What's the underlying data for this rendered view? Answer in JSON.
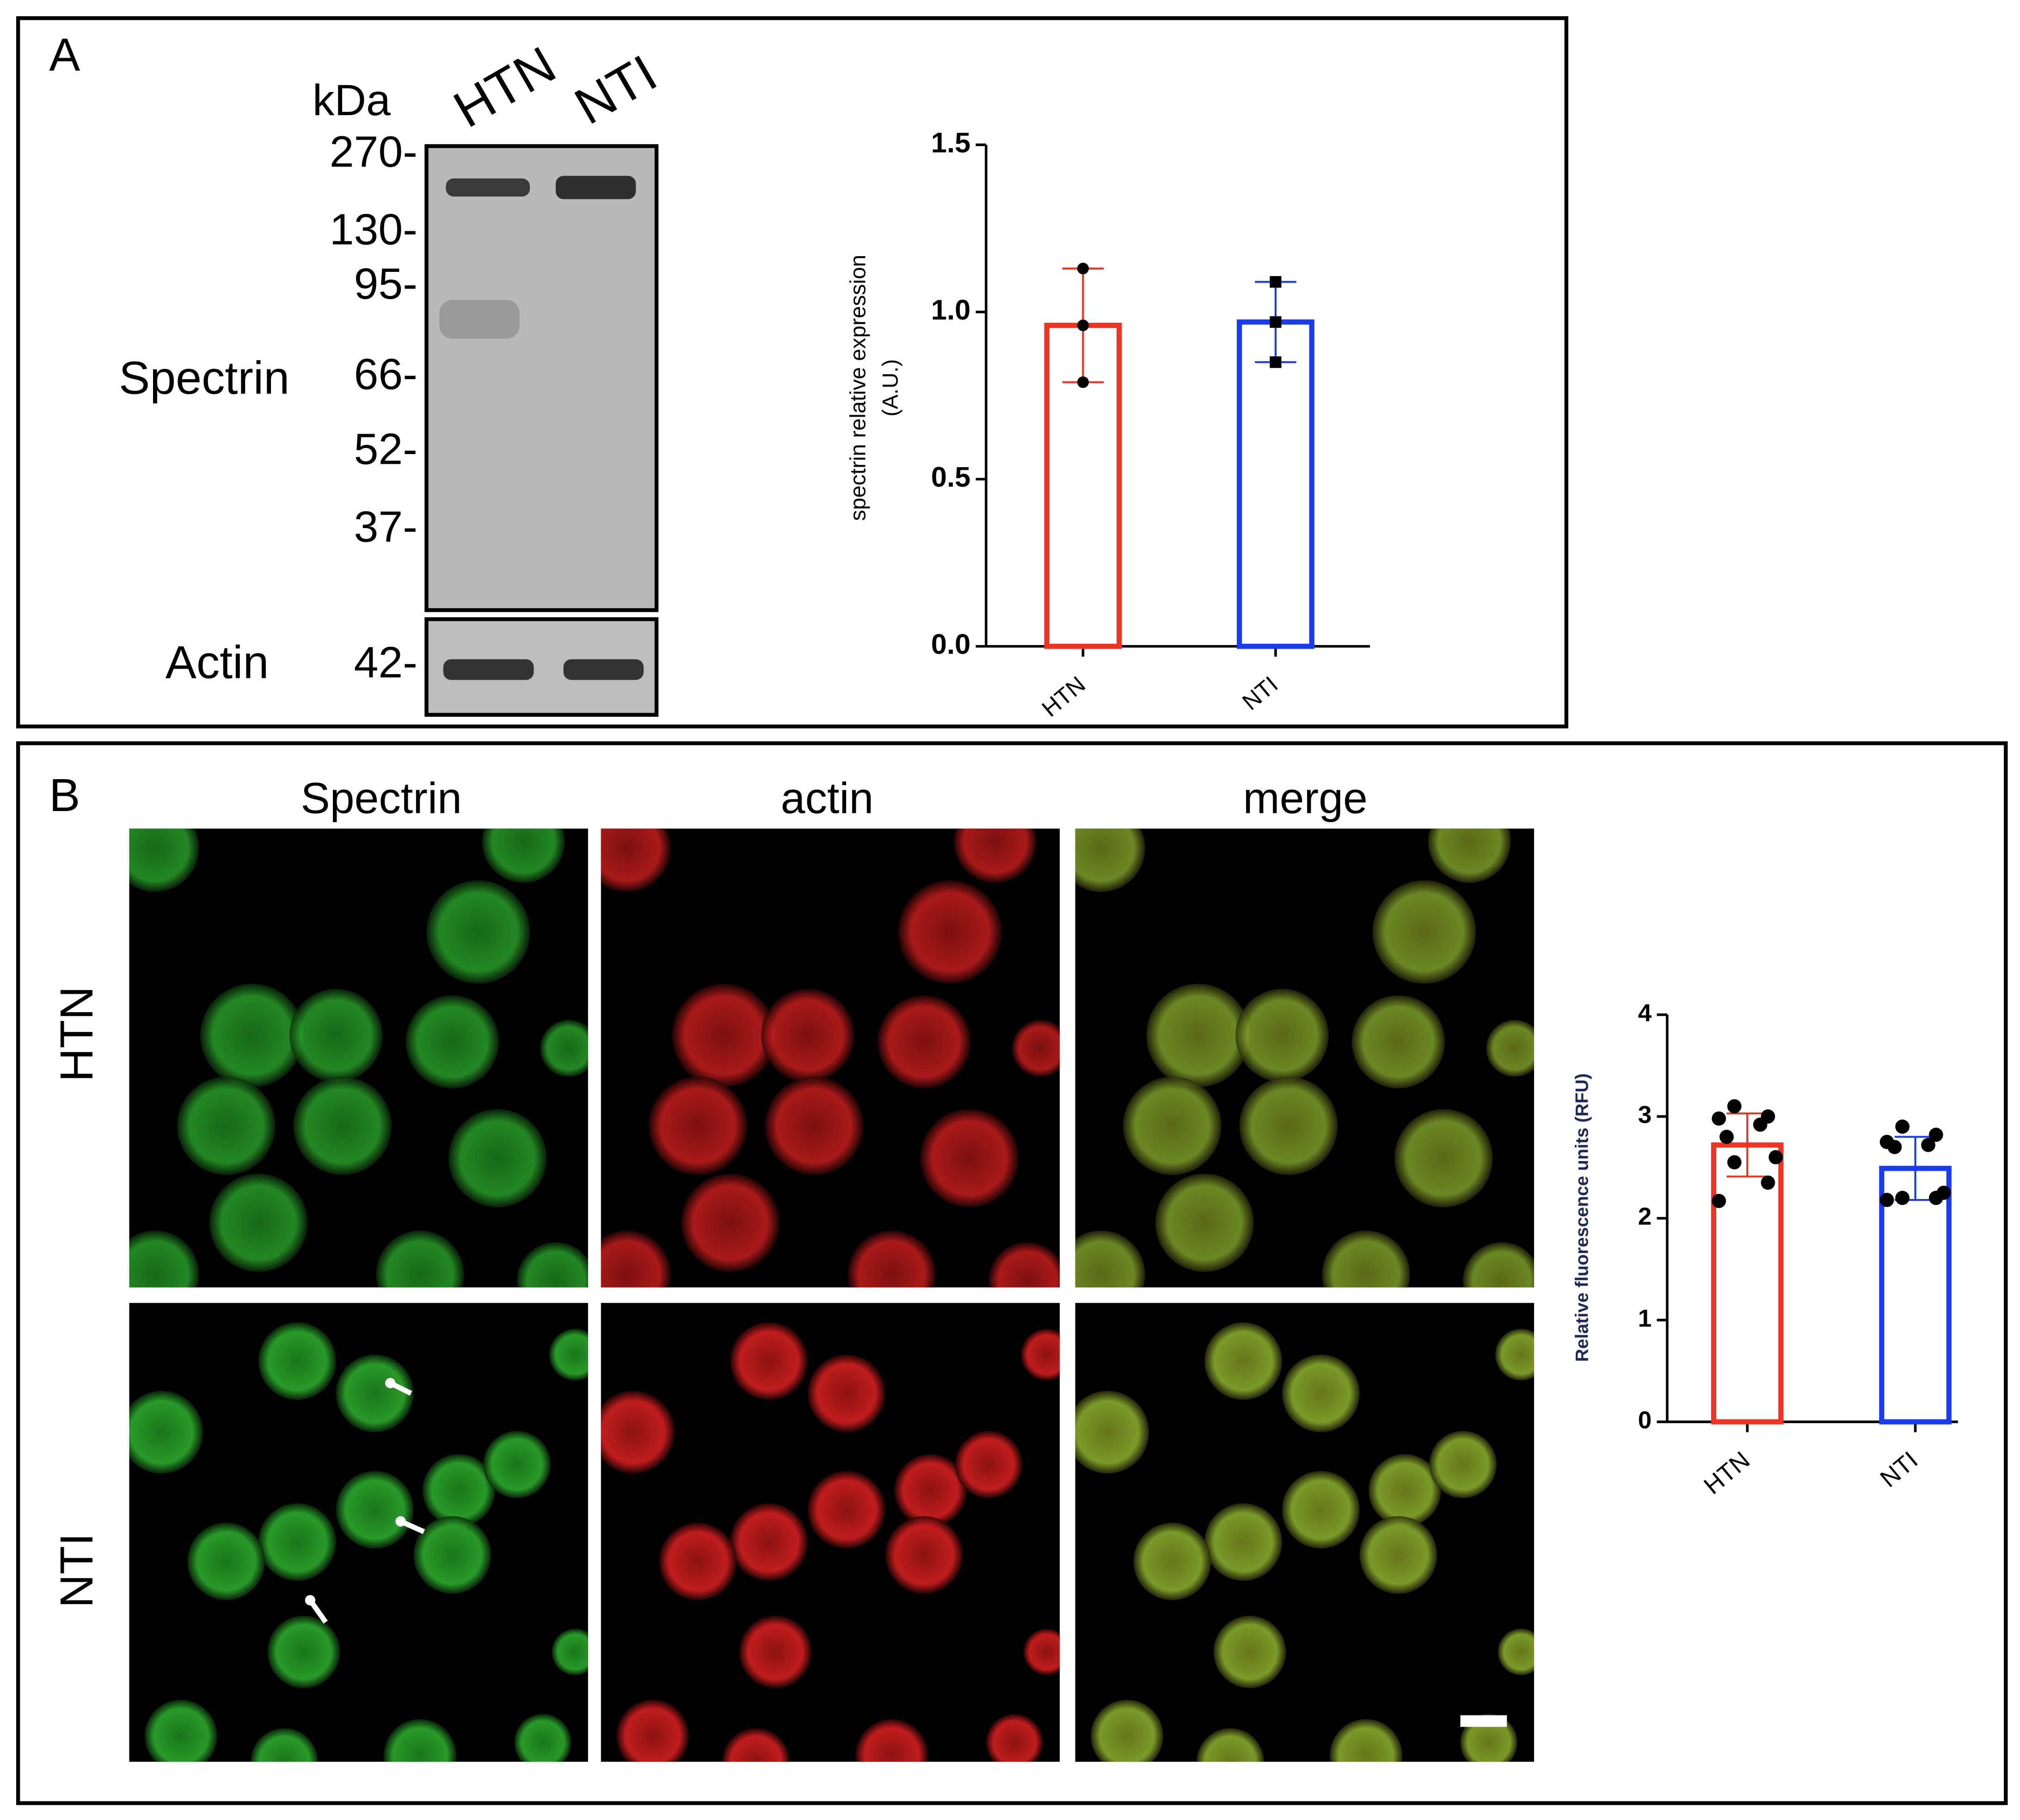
{
  "figure": {
    "panel_a": "A",
    "panel_b": "B",
    "blot": {
      "unit": "kDa",
      "lanes": [
        "HTN",
        "NTI"
      ],
      "markers": [
        "270-",
        "130-",
        "95-",
        "66-",
        "52-",
        "37-"
      ],
      "spectrin_label": "Spectrin",
      "actin_label": "Actin",
      "actin_marker": "42-"
    },
    "microscopy": {
      "columns": [
        "Spectrin",
        "actin",
        "merge"
      ],
      "rows": [
        "HTN",
        "NTI"
      ]
    }
  },
  "chart_data": [
    {
      "type": "bar",
      "ylabel": [
        "spectrin relative expression",
        "(A.U.)"
      ],
      "categories": [
        "HTN",
        "NTI"
      ],
      "values": [
        0.96,
        0.97
      ],
      "errors": [
        0.17,
        0.12
      ],
      "points": [
        [
          1.13,
          0.96,
          0.79
        ],
        [
          1.09,
          0.97,
          0.85
        ]
      ],
      "colors": [
        "#ee3322",
        "#1a3cf0"
      ],
      "markers": [
        "circle",
        "square"
      ],
      "ylim": [
        0,
        1.5
      ],
      "yticks": [
        {
          "value": 0,
          "label": "0.0"
        },
        {
          "value": 0.5,
          "label": "0.5"
        },
        {
          "value": 1,
          "label": "1.0"
        },
        {
          "value": 1.5,
          "label": "1.5"
        }
      ]
    },
    {
      "type": "bar",
      "ylabel": [
        "Relative fluorescence units (RFU)"
      ],
      "categories": [
        "HTN",
        "NTI"
      ],
      "values": [
        2.72,
        2.49
      ],
      "errors": [
        0.31,
        0.31
      ],
      "points": [
        [
          3.1,
          3.0,
          2.98,
          2.92,
          2.8,
          2.6,
          2.55,
          2.35,
          2.17
        ],
        [
          2.9,
          2.82,
          2.75,
          2.72,
          2.7,
          2.25,
          2.2,
          2.2,
          2.18
        ]
      ],
      "colors": [
        "#ee3322",
        "#1a3cf0"
      ],
      "markers": [
        "circle",
        "circle"
      ],
      "ylim": [
        0,
        4
      ],
      "yticks": [
        0,
        1,
        2,
        3,
        4
      ]
    }
  ]
}
